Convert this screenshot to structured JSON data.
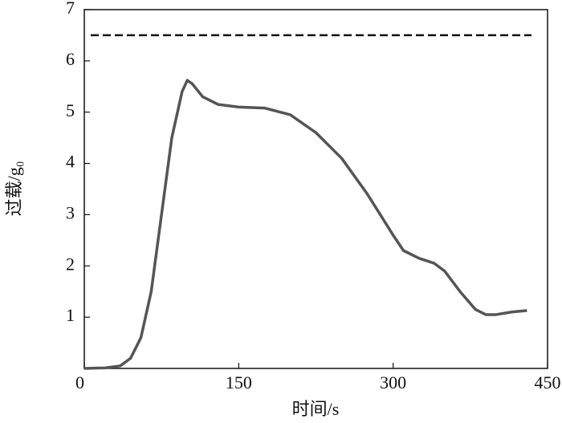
{
  "chart_data": {
    "type": "line",
    "x_label": "时间/s",
    "y_label": "过载/g₀",
    "x": [
      0,
      20,
      35,
      45,
      55,
      65,
      75,
      85,
      95,
      100,
      105,
      115,
      130,
      150,
      175,
      200,
      225,
      250,
      275,
      300,
      310,
      325,
      340,
      350,
      365,
      380,
      390,
      400,
      415,
      430
    ],
    "series": [
      {
        "color": "#555555",
        "values": [
          0,
          0.01,
          0.05,
          0.2,
          0.6,
          1.5,
          3.0,
          4.5,
          5.4,
          5.62,
          5.55,
          5.3,
          5.15,
          5.1,
          5.08,
          4.95,
          4.6,
          4.1,
          3.4,
          2.6,
          2.3,
          2.15,
          2.05,
          1.9,
          1.5,
          1.15,
          1.05,
          1.05,
          1.1,
          1.13
        ]
      }
    ],
    "reference_lines": [
      {
        "value": 6.5,
        "style": "dashed",
        "color": "#111111"
      }
    ],
    "xlim": [
      0,
      450
    ],
    "xticks": [
      0,
      150,
      300,
      450
    ],
    "ylim": [
      0,
      7
    ],
    "yticks": [
      1,
      2,
      3,
      4,
      5,
      6,
      7
    ],
    "grid": false
  }
}
